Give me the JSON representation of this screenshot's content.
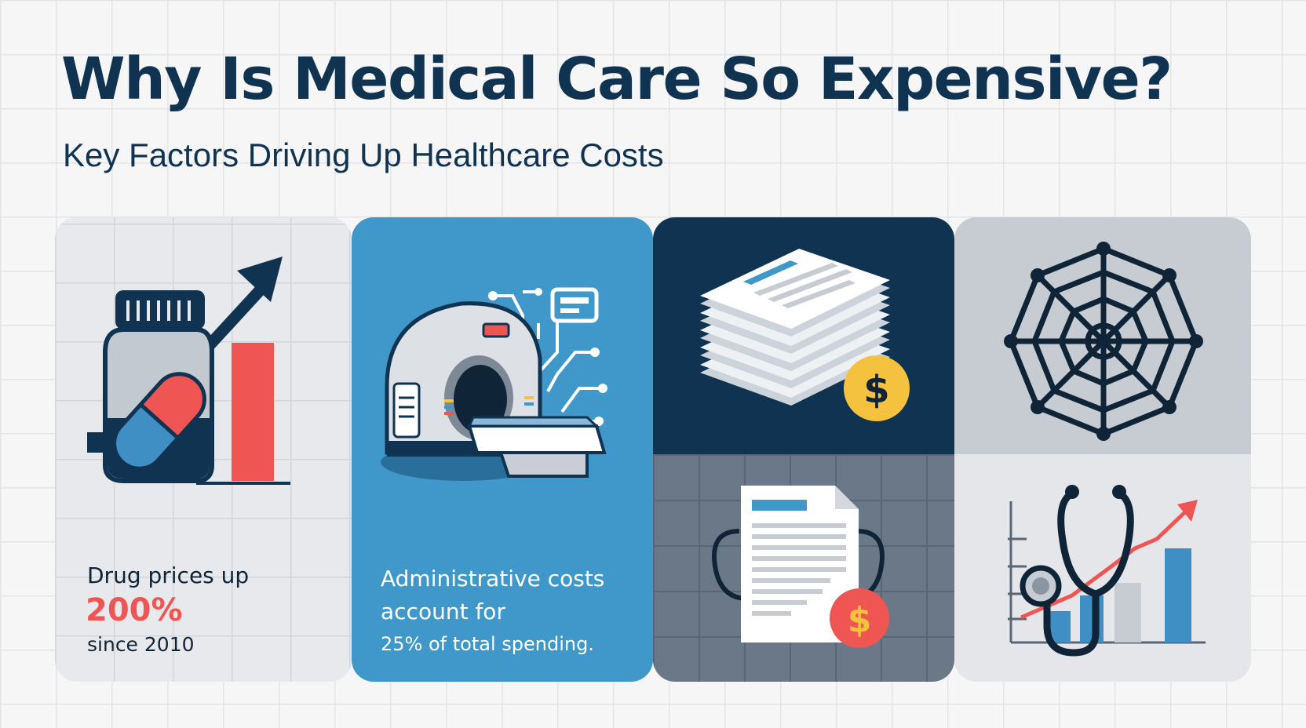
{
  "header": {
    "title": "Why Is Medical Care So Expensive?",
    "subtitle": "Key Factors Driving Up Healthcare Costs"
  },
  "panels": [
    {
      "id": "drug-prices",
      "icons": [
        "medicine-bottle-icon",
        "pill-capsule-icon",
        "trend-up-arrow-icon",
        "bar-icon"
      ],
      "lines": [
        "Drug prices up",
        "200%",
        "since 2010"
      ]
    },
    {
      "id": "administrative-costs",
      "icons": [
        "mri-scanner-icon",
        "circuit-lines-icon"
      ],
      "lines": [
        "Administrative costs",
        "account for",
        "25% of total spending."
      ]
    },
    {
      "id": "billing-paperwork",
      "icons": [
        "paper-stack-icon",
        "dollar-coin-icon",
        "document-icon",
        "dollar-coin-icon"
      ]
    },
    {
      "id": "complexity",
      "icons": [
        "spider-web-network-icon",
        "stethoscope-icon",
        "rising-chart-icon"
      ]
    }
  ],
  "colors": {
    "navy": "#0f3350",
    "accent_red": "#ef5553",
    "blue": "#3f98c9",
    "gold": "#f4c23e",
    "background": "#f6f6f7"
  }
}
